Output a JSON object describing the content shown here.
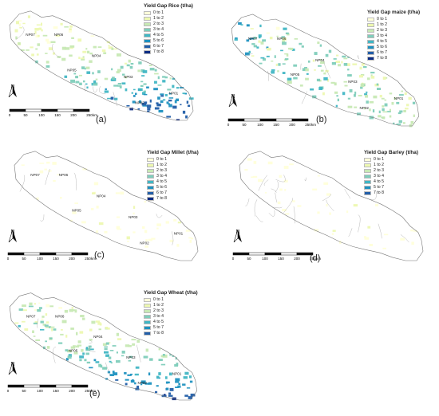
{
  "legend_classes": [
    "0 to 1",
    "1 to 2",
    "2 to 3",
    "3 to 4",
    "4 to 5",
    "5 to 6",
    "6 to 7",
    "7 to 8"
  ],
  "legend_colors": [
    "#ffffd9",
    "#edf8b1",
    "#c7e9b4",
    "#7fcdbb",
    "#41b6c4",
    "#1d91c0",
    "#225ea8",
    "#0c2c84"
  ],
  "north_label": "N",
  "scale": {
    "ticks": [
      "0",
      "50",
      "100",
      "150",
      "200",
      "250"
    ],
    "unit": "km"
  },
  "panels": [
    {
      "id": "a",
      "label": "(a)",
      "legend_title": "Yield Gap Rice (t/ha)",
      "regions": [
        "NP07",
        "NP06",
        "NP04",
        "NP05",
        "NP03",
        "NP01",
        "NP02"
      ],
      "classes": [
        "0 to 1",
        "1 to 2",
        "2 to 3",
        "3 to 4",
        "4 to 5",
        "5 to 6",
        "6 to 7",
        "7 to 8"
      ],
      "intensity": "high-south"
    },
    {
      "id": "b",
      "label": "(b)",
      "legend_title": "Yield Gap maize (t/ha)",
      "regions": [
        "NP07",
        "NP06",
        "NP04",
        "NP05",
        "NP03",
        "NP01",
        "NP02"
      ],
      "classes": [
        "0 to 1",
        "1 to 2",
        "2 to 3",
        "3 to 4",
        "4 to 5",
        "5 to 6",
        "6 to 7",
        "7 to 8"
      ],
      "intensity": "high-west"
    },
    {
      "id": "c",
      "label": "(c)",
      "legend_title": "Yield Gap Millet (t/ha)",
      "regions": [
        "NP07",
        "NP06",
        "NP04",
        "NP05",
        "NP03",
        "NP01",
        "NP02"
      ],
      "classes": [
        "0 to 1",
        "1 to 2",
        "2 to 3",
        "3 to 4",
        "4 to 5",
        "5 to 6",
        "6 to 7",
        "7 to 8"
      ],
      "intensity": "low"
    },
    {
      "id": "d",
      "label": "(d)",
      "legend_title": "Yield Gap Barley (t/ha)",
      "regions": [],
      "classes": [
        "0 to 1",
        "1 to 2",
        "2 to 3",
        "3 to 4",
        "4 to 5",
        "5 to 7",
        "7 to 8"
      ],
      "intensity": "low"
    },
    {
      "id": "e",
      "label": "(e)",
      "legend_title": "Yield Gap Wheat (t/ha)",
      "regions": [
        "NP07",
        "NP06",
        "NP04",
        "NP05",
        "NP03",
        "NP01",
        "NP02"
      ],
      "classes": [
        "0 to 1",
        "1 to 2",
        "2 to 3",
        "3 to 4",
        "4 to 5",
        "5 to 7",
        "7 to 8"
      ],
      "intensity": "very-high-south"
    }
  ]
}
